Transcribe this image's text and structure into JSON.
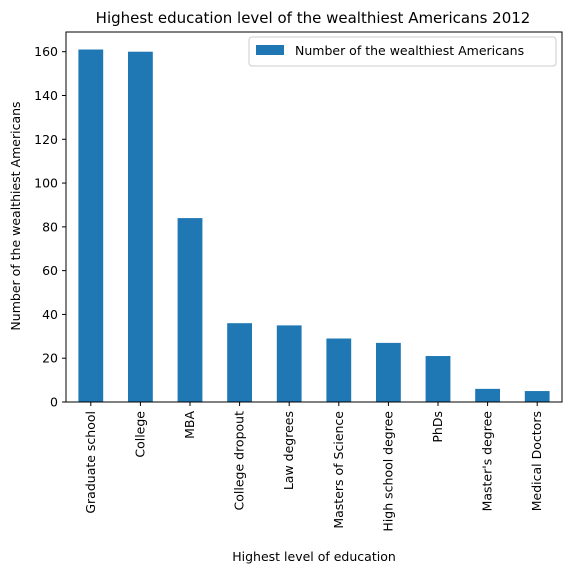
{
  "chart_data": {
    "type": "bar",
    "title": "Highest education level of the wealthiest Americans 2012",
    "xlabel": "Highest level of education",
    "ylabel": "Number of the wealthiest Americans",
    "categories": [
      "Graduate school",
      "College",
      "MBA",
      "College dropout",
      "Law degrees",
      "Masters of Science",
      "High school degree",
      "PhDs",
      "Master's degree",
      "Medical Doctors"
    ],
    "series": [
      {
        "name": "Number of the wealthiest Americans",
        "values": [
          161,
          160,
          84,
          36,
          35,
          29,
          27,
          21,
          6,
          5
        ]
      }
    ],
    "ylim": [
      0,
      169
    ],
    "yticks": [
      0,
      20,
      40,
      60,
      80,
      100,
      120,
      140,
      160
    ],
    "grid": false,
    "legend": "top-right",
    "colors": {
      "bar": "#1f77b4"
    }
  }
}
